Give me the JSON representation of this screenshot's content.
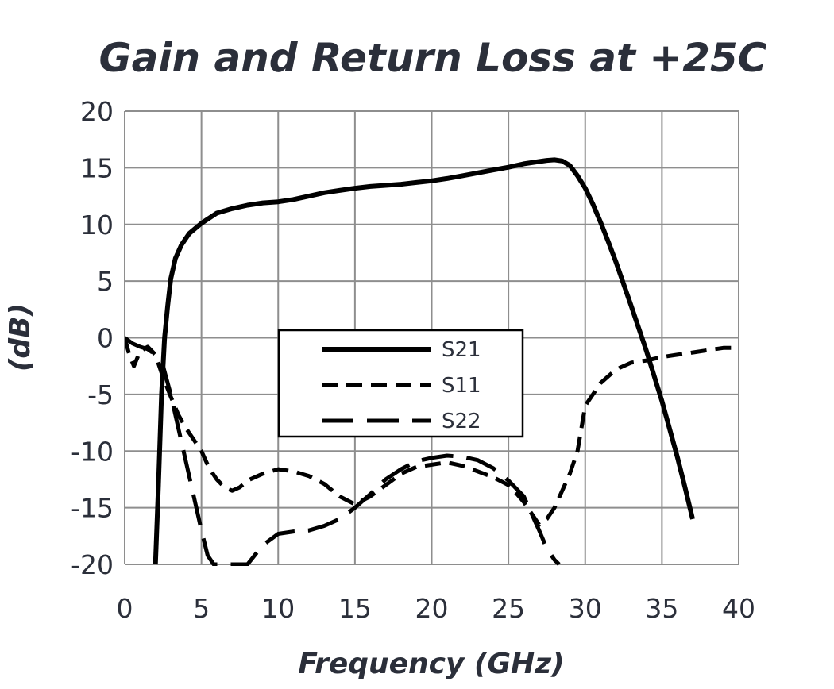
{
  "chart_data": {
    "type": "line",
    "title": "Gain and Return Loss at +25C",
    "xlabel": "Frequency (GHz)",
    "ylabel": "(dB)",
    "xlim": [
      0,
      40
    ],
    "ylim": [
      -20,
      20
    ],
    "xticks": [
      0,
      5,
      10,
      15,
      20,
      25,
      30,
      35,
      40
    ],
    "yticks": [
      20,
      15,
      10,
      5,
      0,
      -5,
      -10,
      -15,
      -20
    ],
    "grid": true,
    "legend_position": "center",
    "series": [
      {
        "name": "S21",
        "style": "solid",
        "color": "#000000",
        "x": [
          2.0,
          2.2,
          2.4,
          2.6,
          2.8,
          3.0,
          3.3,
          3.7,
          4.2,
          5.0,
          6.0,
          7.0,
          8.0,
          9.0,
          10.0,
          11.0,
          12.0,
          13.0,
          14.0,
          15.0,
          16.0,
          17.0,
          18.0,
          19.0,
          20.0,
          21.0,
          22.0,
          23.0,
          24.0,
          25.0,
          26.0,
          27.0,
          27.5,
          28.0,
          28.5,
          29.0,
          29.5,
          30.0,
          30.5,
          31.0,
          31.5,
          32.0,
          33.0,
          34.0,
          35.0,
          36.0,
          36.5,
          37.0
        ],
        "y": [
          -20,
          -13,
          -5,
          0,
          2.8,
          5.2,
          7,
          8.2,
          9.2,
          10.1,
          11,
          11.4,
          11.7,
          11.9,
          12.0,
          12.2,
          12.5,
          12.8,
          13.0,
          13.2,
          13.35,
          13.45,
          13.55,
          13.7,
          13.85,
          14.05,
          14.3,
          14.55,
          14.8,
          15.05,
          15.35,
          15.55,
          15.65,
          15.7,
          15.6,
          15.2,
          14.3,
          13.2,
          11.8,
          10.2,
          8.5,
          6.7,
          2.8,
          -1.2,
          -5.6,
          -10.5,
          -13.2,
          -16
        ]
      },
      {
        "name": "S11",
        "style": "short-dash",
        "color": "#000000",
        "x": [
          0.0,
          0.3,
          0.6,
          1.0,
          1.5,
          2.0,
          2.5,
          3.0,
          3.5,
          4.0,
          4.5,
          5.0,
          5.5,
          6.0,
          6.5,
          7.0,
          7.5,
          8.0,
          9.0,
          10.0,
          11.0,
          12.0,
          13.0,
          14.0,
          15.0,
          16.0,
          17.0,
          18.0,
          19.0,
          20.0,
          21.0,
          22.0,
          23.0,
          24.0,
          25.0,
          25.5,
          26.0,
          26.5,
          27.0,
          27.5,
          28.0,
          28.5,
          29.0,
          29.5,
          30.0,
          31.0,
          32.0,
          33.0,
          34.0,
          35.0,
          36.0,
          37.0,
          38.0,
          39.0,
          40.0
        ],
        "y": [
          0,
          -1.5,
          -2.5,
          -1.2,
          -0.8,
          -1.5,
          -3.5,
          -5.2,
          -6.8,
          -8.0,
          -9.0,
          -10.0,
          -11.5,
          -12.5,
          -13.2,
          -13.5,
          -13.2,
          -12.6,
          -12.0,
          -11.6,
          -11.8,
          -12.2,
          -12.9,
          -14.0,
          -14.7,
          -14.0,
          -13.0,
          -12.0,
          -11.4,
          -11.2,
          -11.0,
          -11.3,
          -11.8,
          -12.3,
          -13.0,
          -13.7,
          -14.5,
          -15.5,
          -16.5,
          -16.0,
          -15.0,
          -13.5,
          -12.0,
          -10.0,
          -6.0,
          -4.0,
          -2.8,
          -2.2,
          -2.0,
          -1.7,
          -1.5,
          -1.3,
          -1.1,
          -0.9,
          -0.9
        ]
      },
      {
        "name": "S22",
        "style": "long-dash",
        "color": "#000000",
        "x": [
          0.0,
          0.5,
          1.0,
          1.5,
          2.0,
          2.5,
          3.0,
          3.5,
          4.0,
          4.5,
          5.0,
          5.4,
          5.8,
          8.0,
          9.0,
          10.0,
          11.0,
          12.0,
          13.0,
          14.0,
          15.0,
          16.0,
          17.0,
          18.0,
          19.0,
          20.0,
          21.0,
          22.0,
          23.0,
          24.0,
          25.0,
          26.0,
          26.5,
          27.0,
          27.5,
          28.0,
          28.3
        ],
        "y": [
          0,
          -0.5,
          -0.8,
          -1.0,
          -1.5,
          -2.5,
          -5.0,
          -8.0,
          -11.0,
          -14.0,
          -17.0,
          -19.2,
          -20.0,
          -20.0,
          -18.3,
          -17.3,
          -17.1,
          -17.0,
          -16.6,
          -16.0,
          -15.0,
          -13.8,
          -12.5,
          -11.6,
          -10.9,
          -10.6,
          -10.4,
          -10.5,
          -10.8,
          -11.5,
          -12.6,
          -14.0,
          -15.5,
          -17.0,
          -18.6,
          -19.6,
          -20.0
        ]
      }
    ]
  }
}
